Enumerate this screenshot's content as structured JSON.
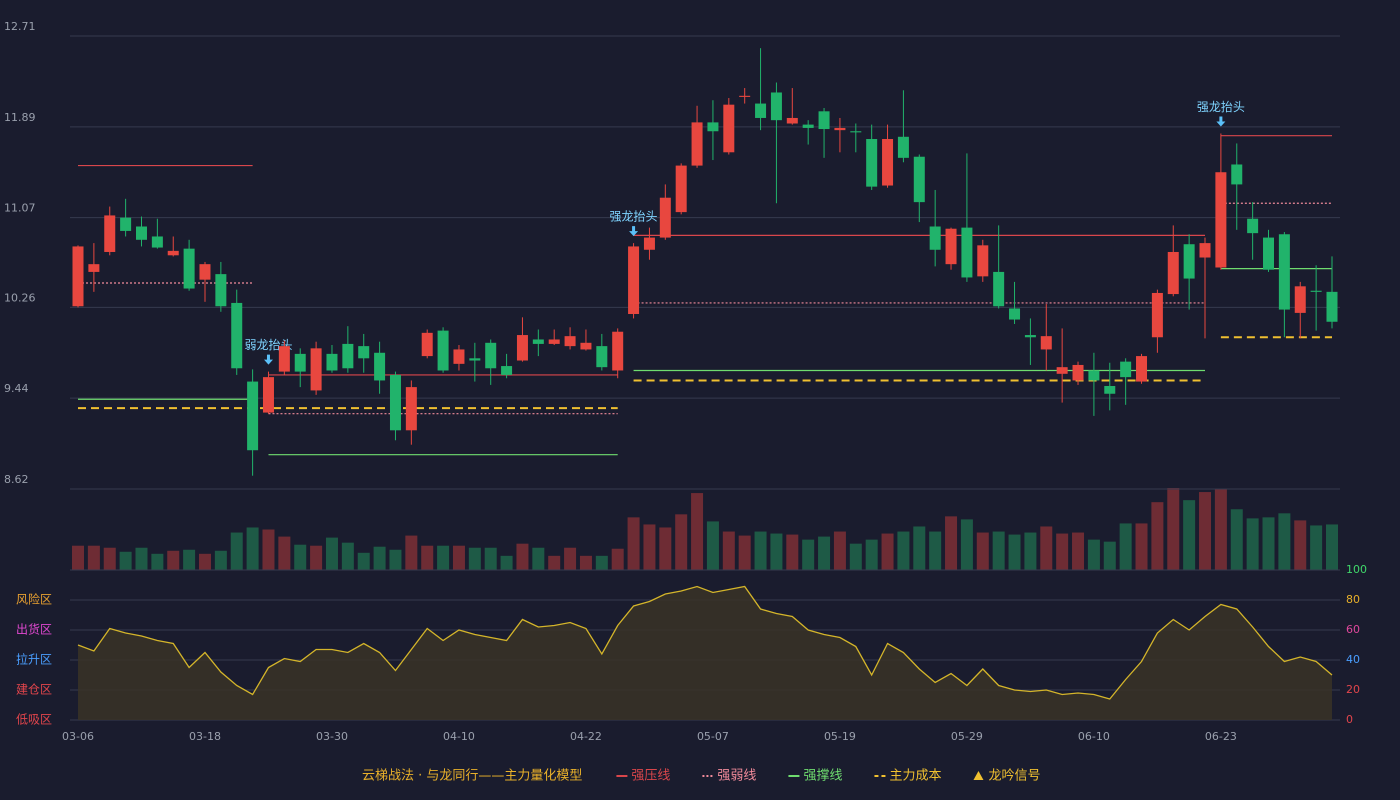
{
  "chart_data": [
    {
      "type": "candlestick",
      "categories": [
        "03-06",
        null,
        null,
        null,
        null,
        null,
        null,
        null,
        "03-18",
        null,
        null,
        null,
        null,
        null,
        null,
        null,
        "03-30",
        null,
        null,
        null,
        null,
        null,
        null,
        null,
        "04-10",
        null,
        null,
        null,
        null,
        null,
        null,
        null,
        "04-22",
        null,
        null,
        null,
        null,
        null,
        null,
        null,
        "05-07",
        null,
        null,
        null,
        null,
        null,
        null,
        null,
        "05-19",
        null,
        null,
        null,
        null,
        null,
        null,
        null,
        "05-29",
        null,
        null,
        null,
        null,
        null,
        null,
        null,
        "06-10",
        null,
        null,
        null,
        null,
        null,
        null,
        null,
        "06-23",
        null,
        null,
        null,
        null,
        null,
        null,
        null
      ],
      "open": [
        10.27,
        10.58,
        10.76,
        11.07,
        10.99,
        10.9,
        10.73,
        10.79,
        10.51,
        10.56,
        10.3,
        9.59,
        9.31,
        9.68,
        9.84,
        9.51,
        9.84,
        9.93,
        9.91,
        9.85,
        9.65,
        9.15,
        9.82,
        10.05,
        9.75,
        9.8,
        9.94,
        9.73,
        9.78,
        9.97,
        9.93,
        9.91,
        9.88,
        9.91,
        9.69,
        10.2,
        10.78,
        10.89,
        11.12,
        11.54,
        11.93,
        11.66,
        12.16,
        12.1,
        12.2,
        11.92,
        11.91,
        12.03,
        11.86,
        11.85,
        11.78,
        11.36,
        11.8,
        11.62,
        10.99,
        10.65,
        10.98,
        10.54,
        10.58,
        10.25,
        10.01,
        9.88,
        9.66,
        9.6,
        9.69,
        9.55,
        9.77,
        9.59,
        9.99,
        10.38,
        10.83,
        10.71,
        10.62,
        11.55,
        11.06,
        10.89,
        10.92,
        10.21,
        10.41,
        10.4
      ],
      "high": [
        10.82,
        10.84,
        11.17,
        11.24,
        11.08,
        11.06,
        10.9,
        10.87,
        10.67,
        10.67,
        10.42,
        9.7,
        9.68,
        9.96,
        9.89,
        9.95,
        9.92,
        10.09,
        10.02,
        9.95,
        9.68,
        9.6,
        10.06,
        10.08,
        9.92,
        9.94,
        9.97,
        9.84,
        10.17,
        10.06,
        10.06,
        10.08,
        10.06,
        10.02,
        10.07,
        10.84,
        10.98,
        11.37,
        11.56,
        12.08,
        12.13,
        12.15,
        12.24,
        12.6,
        12.29,
        12.24,
        11.95,
        12.06,
        11.97,
        11.92,
        11.91,
        11.91,
        12.22,
        11.64,
        11.32,
        10.98,
        11.65,
        10.87,
        11.0,
        10.49,
        10.16,
        10.29,
        10.07,
        9.77,
        9.85,
        9.76,
        9.8,
        9.84,
        10.42,
        11.0,
        10.92,
        10.89,
        11.83,
        11.74,
        11.21,
        10.96,
        10.94,
        10.49,
        10.64,
        10.72
      ],
      "low": [
        10.26,
        10.4,
        10.73,
        10.9,
        10.81,
        10.79,
        10.72,
        10.41,
        10.31,
        10.22,
        9.65,
        8.74,
        9.3,
        9.65,
        9.54,
        9.47,
        9.67,
        9.67,
        9.67,
        9.48,
        9.06,
        9.02,
        9.8,
        9.67,
        9.69,
        9.59,
        9.56,
        9.62,
        9.77,
        9.82,
        9.92,
        9.88,
        9.87,
        9.69,
        9.62,
        10.16,
        10.69,
        10.87,
        11.1,
        11.52,
        11.59,
        11.64,
        12.1,
        11.86,
        11.2,
        11.91,
        11.73,
        11.61,
        11.66,
        11.66,
        11.32,
        11.34,
        11.57,
        11.03,
        10.63,
        10.6,
        10.49,
        10.49,
        10.25,
        10.11,
        9.74,
        9.69,
        9.4,
        9.56,
        9.28,
        9.33,
        9.38,
        9.57,
        9.85,
        10.36,
        10.24,
        9.98,
        10.6,
        10.96,
        10.69,
        10.58,
        9.99,
        9.98,
        10.05,
        10.07
      ],
      "close": [
        10.81,
        10.65,
        11.09,
        10.95,
        10.87,
        10.8,
        10.77,
        10.43,
        10.65,
        10.27,
        9.71,
        8.97,
        9.63,
        9.91,
        9.68,
        9.89,
        9.69,
        9.71,
        9.8,
        9.6,
        9.15,
        9.54,
        10.03,
        9.69,
        9.88,
        9.78,
        9.71,
        9.65,
        10.01,
        9.93,
        9.97,
        10.0,
        9.94,
        9.72,
        10.04,
        10.81,
        10.89,
        11.25,
        11.54,
        11.93,
        11.85,
        12.09,
        12.17,
        11.97,
        11.95,
        11.97,
        11.88,
        11.87,
        11.88,
        11.84,
        11.35,
        11.78,
        11.61,
        11.21,
        10.78,
        10.97,
        10.53,
        10.82,
        10.27,
        10.15,
        9.99,
        10.0,
        9.72,
        9.74,
        9.6,
        9.48,
        9.63,
        9.82,
        10.39,
        10.76,
        10.52,
        10.84,
        11.48,
        11.37,
        10.93,
        10.6,
        10.24,
        10.45,
        10.4,
        10.13
      ],
      "up_color": "#e8473f",
      "down_color": "#21b36b",
      "ylim": [
        8.62,
        12.71
      ],
      "yticks": [
        8.62,
        9.44,
        10.26,
        11.07,
        11.89,
        12.71
      ],
      "grid": true,
      "levels": [
        {
          "name": "强压线",
          "color": "#d9464b",
          "style": "solid",
          "values": [
            11.54,
            11.54,
            11.54,
            11.54,
            11.54,
            11.54,
            11.54,
            11.54,
            11.54,
            11.54,
            11.54,
            11.54,
            9.65,
            9.65,
            9.65,
            9.65,
            9.65,
            9.65,
            9.65,
            9.65,
            9.65,
            9.65,
            9.65,
            9.65,
            9.65,
            9.65,
            9.65,
            9.65,
            9.65,
            9.65,
            9.65,
            9.65,
            9.65,
            9.65,
            9.65,
            10.91,
            10.91,
            10.91,
            10.91,
            10.91,
            10.91,
            10.91,
            10.91,
            10.91,
            10.91,
            10.91,
            10.91,
            10.91,
            10.91,
            10.91,
            10.91,
            10.91,
            10.91,
            10.91,
            10.91,
            10.91,
            10.91,
            10.91,
            10.91,
            10.91,
            10.91,
            10.91,
            10.91,
            10.91,
            10.91,
            10.91,
            10.91,
            10.91,
            10.91,
            10.91,
            10.91,
            10.91,
            11.81,
            11.81,
            11.81,
            11.81,
            11.81,
            11.81,
            11.81,
            11.81
          ]
        },
        {
          "name": "强弱线",
          "color": "#f08a9a",
          "style": "dotted",
          "values": [
            10.48,
            10.48,
            10.48,
            10.48,
            10.48,
            10.48,
            10.48,
            10.48,
            10.48,
            10.48,
            10.48,
            10.48,
            9.3,
            9.3,
            9.3,
            9.3,
            9.3,
            9.3,
            9.3,
            9.3,
            9.3,
            9.3,
            9.3,
            9.3,
            9.3,
            9.3,
            9.3,
            9.3,
            9.3,
            9.3,
            9.3,
            9.3,
            9.3,
            9.3,
            9.3,
            10.3,
            10.3,
            10.3,
            10.3,
            10.3,
            10.3,
            10.3,
            10.3,
            10.3,
            10.3,
            10.3,
            10.3,
            10.3,
            10.3,
            10.3,
            10.3,
            10.3,
            10.3,
            10.3,
            10.3,
            10.3,
            10.3,
            10.3,
            10.3,
            10.3,
            10.3,
            10.3,
            10.3,
            10.3,
            10.3,
            10.3,
            10.3,
            10.3,
            10.3,
            10.3,
            10.3,
            10.3,
            11.2,
            11.2,
            11.2,
            11.2,
            11.2,
            11.2,
            11.2,
            11.2
          ]
        },
        {
          "name": "强撑线",
          "color": "#6fdc6f",
          "style": "solid",
          "values": [
            9.43,
            9.43,
            9.43,
            9.43,
            9.43,
            9.43,
            9.43,
            9.43,
            9.43,
            9.43,
            9.43,
            9.43,
            8.93,
            8.93,
            8.93,
            8.93,
            8.93,
            8.93,
            8.93,
            8.93,
            8.93,
            8.93,
            8.93,
            8.93,
            8.93,
            8.93,
            8.93,
            8.93,
            8.93,
            8.93,
            8.93,
            8.93,
            8.93,
            8.93,
            8.93,
            9.69,
            9.69,
            9.69,
            9.69,
            9.69,
            9.69,
            9.69,
            9.69,
            9.69,
            9.69,
            9.69,
            9.69,
            9.69,
            9.69,
            9.69,
            9.69,
            9.69,
            9.69,
            9.69,
            9.69,
            9.69,
            9.69,
            9.69,
            9.69,
            9.69,
            9.69,
            9.69,
            9.69,
            9.69,
            9.69,
            9.69,
            9.69,
            9.69,
            9.69,
            9.69,
            9.69,
            9.69,
            10.61,
            10.61,
            10.61,
            10.61,
            10.61,
            10.61,
            10.61,
            10.61
          ]
        },
        {
          "name": "主力成本",
          "color": "#f0c030",
          "style": "dashed",
          "values": [
            9.35,
            9.35,
            9.35,
            9.35,
            9.35,
            9.35,
            9.35,
            9.35,
            9.35,
            9.35,
            9.35,
            9.35,
            9.35,
            9.35,
            9.35,
            9.35,
            9.35,
            9.35,
            9.35,
            9.35,
            9.35,
            9.35,
            9.35,
            9.35,
            9.35,
            9.35,
            9.35,
            9.35,
            9.35,
            9.35,
            9.35,
            9.35,
            9.35,
            9.35,
            9.35,
            9.6,
            9.6,
            9.6,
            9.6,
            9.6,
            9.6,
            9.6,
            9.6,
            9.6,
            9.6,
            9.6,
            9.6,
            9.6,
            9.6,
            9.6,
            9.6,
            9.6,
            9.6,
            9.6,
            9.6,
            9.6,
            9.6,
            9.6,
            9.6,
            9.6,
            9.6,
            9.6,
            9.6,
            9.6,
            9.6,
            9.6,
            9.6,
            9.6,
            9.6,
            9.6,
            9.6,
            9.6,
            9.99,
            9.99,
            9.99,
            9.99,
            9.99,
            9.99,
            9.99,
            9.99
          ]
        }
      ],
      "signals": [
        null,
        null,
        null,
        null,
        null,
        null,
        null,
        null,
        null,
        null,
        null,
        null,
        "弱龙抬头",
        null,
        null,
        null,
        null,
        null,
        null,
        null,
        null,
        null,
        null,
        null,
        null,
        null,
        null,
        null,
        null,
        null,
        null,
        null,
        null,
        null,
        null,
        "强龙抬头",
        null,
        null,
        null,
        null,
        null,
        null,
        null,
        null,
        null,
        null,
        null,
        null,
        null,
        null,
        null,
        null,
        null,
        null,
        null,
        null,
        null,
        null,
        null,
        null,
        null,
        null,
        null,
        null,
        null,
        null,
        null,
        null,
        null,
        null,
        null,
        null,
        "强龙抬头",
        null,
        null,
        null,
        null,
        null,
        null,
        null
      ],
      "signal_name": "龙吟信号",
      "signal_color": "#f0c030"
    },
    {
      "type": "bar",
      "values": [
        24,
        24,
        22,
        18,
        22,
        16,
        19,
        20,
        16,
        19,
        37,
        42,
        40,
        33,
        25,
        24,
        32,
        27,
        17,
        23,
        20,
        34,
        24,
        24,
        24,
        22,
        22,
        14,
        26,
        22,
        14,
        22,
        14,
        14,
        21,
        52,
        45,
        42,
        55,
        76,
        48,
        38,
        34,
        38,
        36,
        35,
        30,
        33,
        38,
        26,
        30,
        36,
        38,
        43,
        38,
        53,
        50,
        37,
        38,
        35,
        37,
        43,
        36,
        37,
        30,
        28,
        46,
        46,
        67,
        81,
        69,
        77,
        80,
        60,
        51,
        52,
        56,
        49,
        44,
        45
      ]
    },
    {
      "type": "line",
      "color": "#d4b52a",
      "values": [
        50,
        46,
        61,
        58,
        56,
        53,
        51,
        35,
        45,
        32,
        23,
        17,
        35,
        41,
        39,
        47,
        47,
        45,
        51,
        45,
        33,
        47,
        61,
        53,
        60,
        57,
        55,
        53,
        67,
        62,
        63,
        65,
        61,
        44,
        63,
        76,
        79,
        84,
        86,
        89,
        85,
        87,
        89,
        74,
        71,
        69,
        60,
        57,
        55,
        49,
        30,
        51,
        45,
        34,
        25,
        31,
        23,
        34,
        23,
        20,
        19,
        20,
        17,
        18,
        17,
        14,
        27,
        39,
        58,
        67,
        60,
        69,
        77,
        74,
        62,
        49,
        39,
        42,
        39,
        30
      ],
      "ylim": [
        0,
        100
      ],
      "yticks": [
        0,
        20,
        40,
        60,
        80,
        100
      ],
      "ytick_colors": [
        "#e2454c",
        "#e2454c",
        "#4a9eff",
        "#e0489c",
        "#e8b02a",
        "#3fd86a"
      ],
      "zones": [
        {
          "label": "风险区",
          "value": 80,
          "color": "#e8a030"
        },
        {
          "label": "出货区",
          "value": 60,
          "color": "#e048d0"
        },
        {
          "label": "拉升区",
          "value": 40,
          "color": "#4a9eff"
        },
        {
          "label": "建仓区",
          "value": 20,
          "color": "#e2454c"
        },
        {
          "label": "低吸区",
          "value": 0,
          "color": "#e2454c"
        }
      ]
    }
  ],
  "legend_title": "云梯战法 · 与龙同行——主力量化模型"
}
